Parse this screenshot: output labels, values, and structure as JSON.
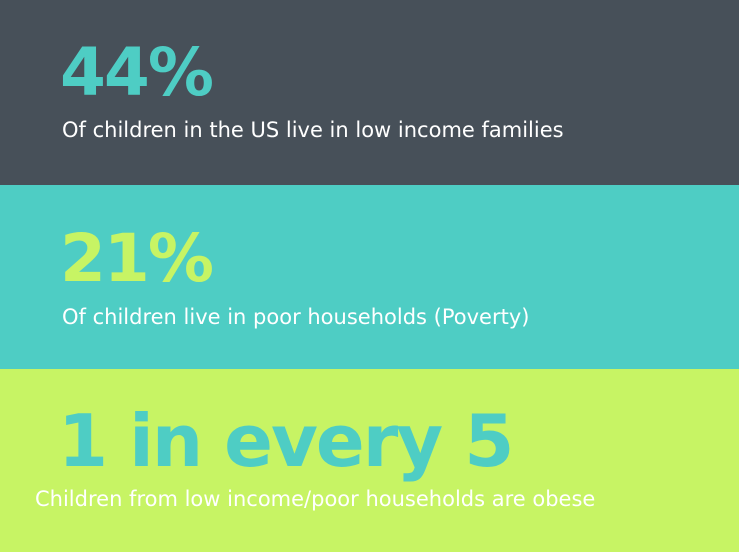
{
  "colors": {
    "dark_slate": "#475059",
    "teal": "#4ecdc4",
    "lime": "#c7f464",
    "white": "#ffffff"
  },
  "stats": [
    {
      "value": "44%",
      "caption": "Of children in the US live in low income families"
    },
    {
      "value": "21%",
      "caption": "Of children live in poor households (Poverty)"
    },
    {
      "value": "1 in every 5",
      "caption": "Children from low income/poor households are obese"
    }
  ]
}
